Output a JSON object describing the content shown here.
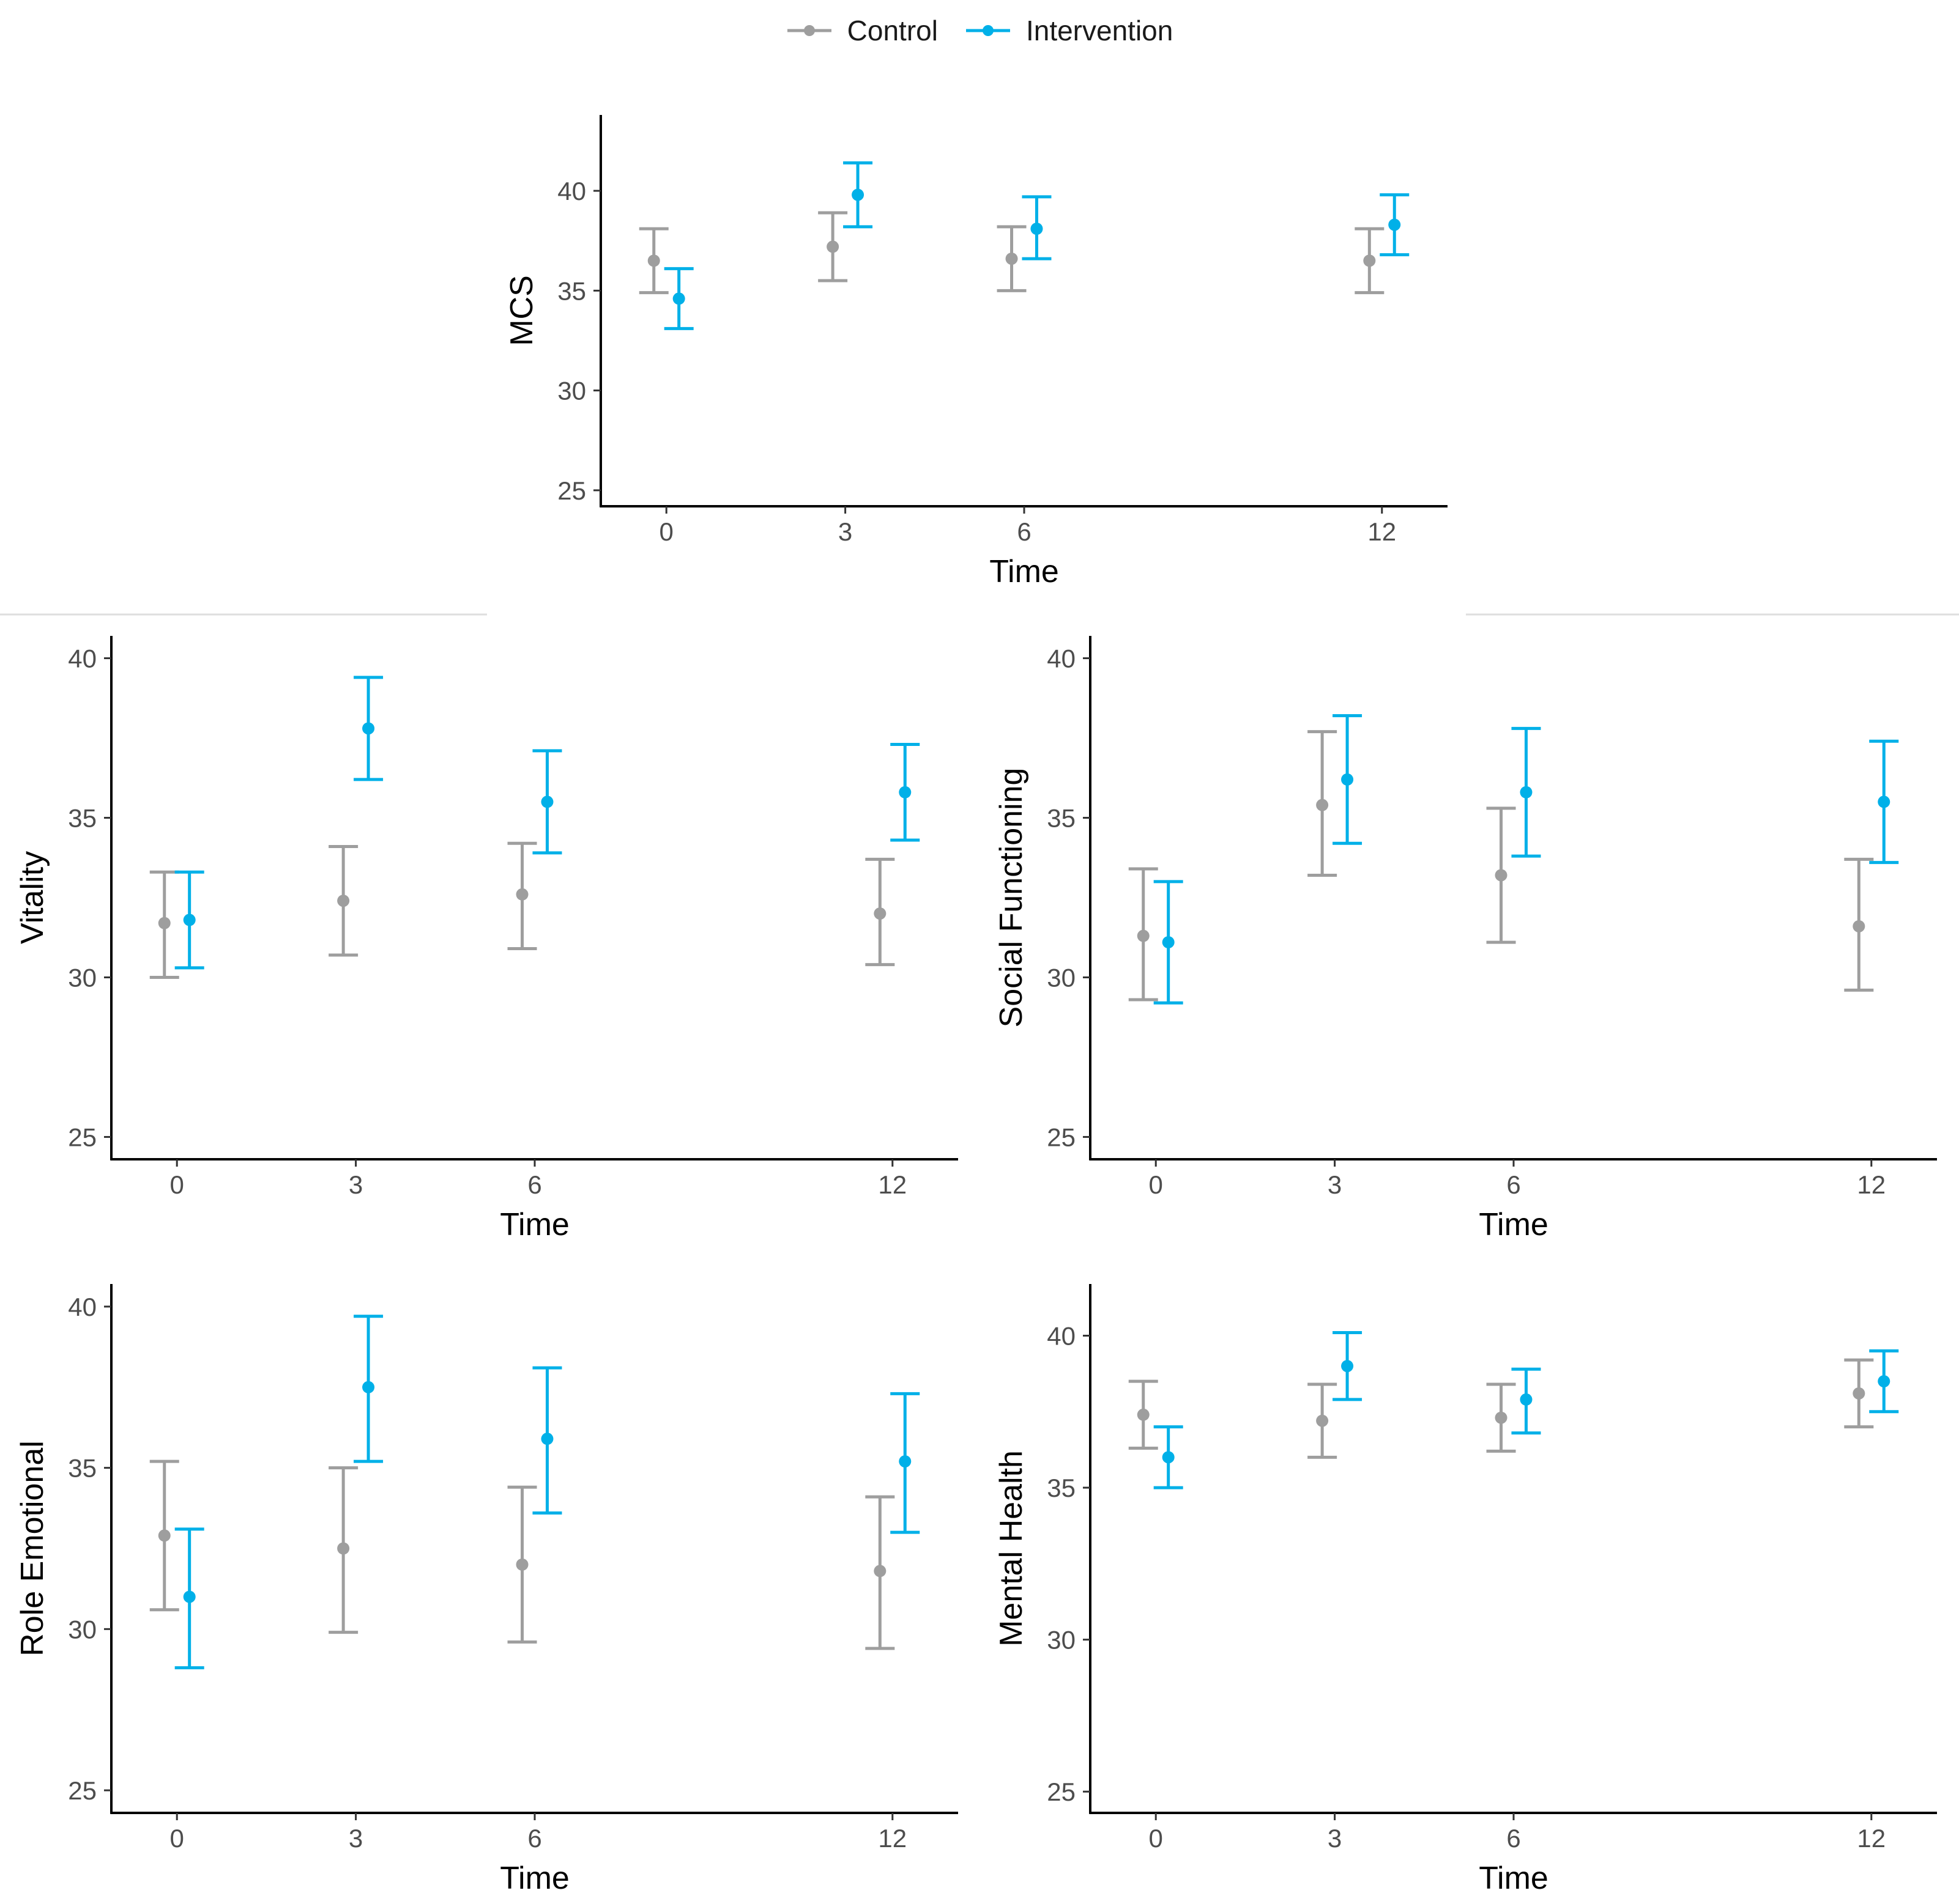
{
  "legend": [
    {
      "label": "Control",
      "color": "#9e9e9e"
    },
    {
      "label": "Intervention",
      "color": "#00b0e8"
    }
  ],
  "chart_data": [
    {
      "type": "scatter",
      "subtype": "point-with-error-bars",
      "title": "",
      "xlabel": "Time",
      "ylabel": "MCS",
      "x_ticks": [
        0,
        3,
        6,
        12
      ],
      "y_ticks": [
        25,
        30,
        35,
        40
      ],
      "xlim": [
        -1.1,
        13.1
      ],
      "ylim": [
        24.2,
        43.8
      ],
      "series": [
        {
          "name": "Control",
          "color": "#9e9e9e",
          "points": [
            {
              "x": 0,
              "y": 36.5,
              "lower": 34.9,
              "upper": 38.1
            },
            {
              "x": 3,
              "y": 37.2,
              "lower": 35.5,
              "upper": 38.9
            },
            {
              "x": 6,
              "y": 36.6,
              "lower": 35.0,
              "upper": 38.2
            },
            {
              "x": 12,
              "y": 36.5,
              "lower": 34.9,
              "upper": 38.1
            }
          ]
        },
        {
          "name": "Intervention",
          "color": "#00b0e8",
          "points": [
            {
              "x": 0,
              "y": 34.6,
              "lower": 33.1,
              "upper": 36.1
            },
            {
              "x": 3,
              "y": 39.8,
              "lower": 38.2,
              "upper": 41.4
            },
            {
              "x": 6,
              "y": 38.1,
              "lower": 36.6,
              "upper": 39.7
            },
            {
              "x": 12,
              "y": 38.3,
              "lower": 36.8,
              "upper": 39.8
            }
          ]
        }
      ]
    },
    {
      "type": "scatter",
      "subtype": "point-with-error-bars",
      "title": "",
      "xlabel": "Time",
      "ylabel": "Vitality",
      "x_ticks": [
        0,
        3,
        6,
        12
      ],
      "y_ticks": [
        25,
        30,
        35,
        40
      ],
      "xlim": [
        -1.1,
        13.1
      ],
      "ylim": [
        24.3,
        40.7
      ],
      "series": [
        {
          "name": "Control",
          "color": "#9e9e9e",
          "points": [
            {
              "x": 0,
              "y": 31.7,
              "lower": 30.0,
              "upper": 33.3
            },
            {
              "x": 3,
              "y": 32.4,
              "lower": 30.7,
              "upper": 34.1
            },
            {
              "x": 6,
              "y": 32.6,
              "lower": 30.9,
              "upper": 34.2
            },
            {
              "x": 12,
              "y": 32.0,
              "lower": 30.4,
              "upper": 33.7
            }
          ]
        },
        {
          "name": "Intervention",
          "color": "#00b0e8",
          "points": [
            {
              "x": 0,
              "y": 31.8,
              "lower": 30.3,
              "upper": 33.3
            },
            {
              "x": 3,
              "y": 37.8,
              "lower": 36.2,
              "upper": 39.4
            },
            {
              "x": 6,
              "y": 35.5,
              "lower": 33.9,
              "upper": 37.1
            },
            {
              "x": 12,
              "y": 35.8,
              "lower": 34.3,
              "upper": 37.3
            }
          ]
        }
      ]
    },
    {
      "type": "scatter",
      "subtype": "point-with-error-bars",
      "title": "",
      "xlabel": "Time",
      "ylabel": "Social Functioning",
      "x_ticks": [
        0,
        3,
        6,
        12
      ],
      "y_ticks": [
        25,
        30,
        35,
        40
      ],
      "xlim": [
        -1.1,
        13.1
      ],
      "ylim": [
        24.3,
        40.7
      ],
      "series": [
        {
          "name": "Control",
          "color": "#9e9e9e",
          "points": [
            {
              "x": 0,
              "y": 31.3,
              "lower": 29.3,
              "upper": 33.4
            },
            {
              "x": 3,
              "y": 35.4,
              "lower": 33.2,
              "upper": 37.7
            },
            {
              "x": 6,
              "y": 33.2,
              "lower": 31.1,
              "upper": 35.3
            },
            {
              "x": 12,
              "y": 31.6,
              "lower": 29.6,
              "upper": 33.7
            }
          ]
        },
        {
          "name": "Intervention",
          "color": "#00b0e8",
          "points": [
            {
              "x": 0,
              "y": 31.1,
              "lower": 29.2,
              "upper": 33.0
            },
            {
              "x": 3,
              "y": 36.2,
              "lower": 34.2,
              "upper": 38.2
            },
            {
              "x": 6,
              "y": 35.8,
              "lower": 33.8,
              "upper": 37.8
            },
            {
              "x": 12,
              "y": 35.5,
              "lower": 33.6,
              "upper": 37.4
            }
          ]
        }
      ]
    },
    {
      "type": "scatter",
      "subtype": "point-with-error-bars",
      "title": "",
      "xlabel": "Time",
      "ylabel": "Role Emotional",
      "x_ticks": [
        0,
        3,
        6,
        12
      ],
      "y_ticks": [
        25,
        30,
        35,
        40
      ],
      "xlim": [
        -1.1,
        13.1
      ],
      "ylim": [
        24.3,
        40.7
      ],
      "series": [
        {
          "name": "Control",
          "color": "#9e9e9e",
          "points": [
            {
              "x": 0,
              "y": 32.9,
              "lower": 30.6,
              "upper": 35.2
            },
            {
              "x": 3,
              "y": 32.5,
              "lower": 29.9,
              "upper": 35.0
            },
            {
              "x": 6,
              "y": 32.0,
              "lower": 29.6,
              "upper": 34.4
            },
            {
              "x": 12,
              "y": 31.8,
              "lower": 29.4,
              "upper": 34.1
            }
          ]
        },
        {
          "name": "Intervention",
          "color": "#00b0e8",
          "points": [
            {
              "x": 0,
              "y": 31.0,
              "lower": 28.8,
              "upper": 33.1
            },
            {
              "x": 3,
              "y": 37.5,
              "lower": 35.2,
              "upper": 39.7
            },
            {
              "x": 6,
              "y": 35.9,
              "lower": 33.6,
              "upper": 38.1
            },
            {
              "x": 12,
              "y": 35.2,
              "lower": 33.0,
              "upper": 37.3
            }
          ]
        }
      ]
    },
    {
      "type": "scatter",
      "subtype": "point-with-error-bars",
      "title": "",
      "xlabel": "Time",
      "ylabel": "Mental Health",
      "x_ticks": [
        0,
        3,
        6,
        12
      ],
      "y_ticks": [
        25,
        30,
        35,
        40
      ],
      "xlim": [
        -1.1,
        13.1
      ],
      "ylim": [
        24.3,
        41.7
      ],
      "series": [
        {
          "name": "Control",
          "color": "#9e9e9e",
          "points": [
            {
              "x": 0,
              "y": 37.4,
              "lower": 36.3,
              "upper": 38.5
            },
            {
              "x": 3,
              "y": 37.2,
              "lower": 36.0,
              "upper": 38.4
            },
            {
              "x": 6,
              "y": 37.3,
              "lower": 36.2,
              "upper": 38.4
            },
            {
              "x": 12,
              "y": 38.1,
              "lower": 37.0,
              "upper": 39.2
            }
          ]
        },
        {
          "name": "Intervention",
          "color": "#00b0e8",
          "points": [
            {
              "x": 0,
              "y": 36.0,
              "lower": 35.0,
              "upper": 37.0
            },
            {
              "x": 3,
              "y": 39.0,
              "lower": 37.9,
              "upper": 40.1
            },
            {
              "x": 6,
              "y": 37.9,
              "lower": 36.8,
              "upper": 38.9
            },
            {
              "x": 12,
              "y": 38.5,
              "lower": 37.5,
              "upper": 39.5
            }
          ]
        }
      ]
    }
  ]
}
